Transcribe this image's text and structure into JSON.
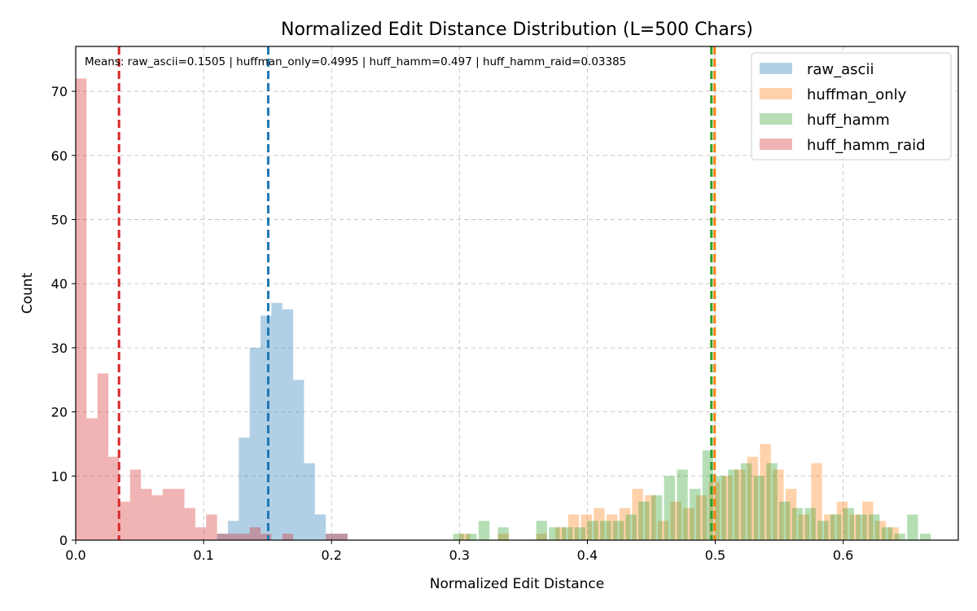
{
  "chart_data": {
    "type": "histogram",
    "title": "Normalized Edit Distance Distribution (L=500 Chars)",
    "xlabel": "Normalized Edit Distance",
    "ylabel": "Count",
    "xlim": [
      0.0,
      0.69
    ],
    "ylim": [
      0,
      77
    ],
    "xticks": [
      0.0,
      0.1,
      0.2,
      0.3,
      0.4,
      0.5,
      0.6
    ],
    "xtick_labels": [
      "0.0",
      "0.1",
      "0.2",
      "0.3",
      "0.4",
      "0.5",
      "0.6"
    ],
    "yticks": [
      0,
      10,
      20,
      30,
      40,
      50,
      60,
      70
    ],
    "ytick_labels": [
      "0",
      "10",
      "20",
      "30",
      "40",
      "50",
      "60",
      "70"
    ],
    "grid": true,
    "legend_position": "top-right",
    "bin_width": 0.0085,
    "means_text": "Means: raw_ascii=0.1505 | huffman_only=0.4995 | huff_hamm=0.497 | huff_hamm_raid=0.03385",
    "series": [
      {
        "name": "raw_ascii",
        "color": "#1f77b4",
        "mean": 0.1505,
        "bins": [
          [
            0.1105,
            1
          ],
          [
            0.119,
            3
          ],
          [
            0.1275,
            16
          ],
          [
            0.136,
            30
          ],
          [
            0.1445,
            35
          ],
          [
            0.153,
            37
          ],
          [
            0.1615,
            36
          ],
          [
            0.17,
            25
          ],
          [
            0.1785,
            12
          ],
          [
            0.187,
            4
          ],
          [
            0.1955,
            1
          ],
          [
            0.204,
            1
          ]
        ]
      },
      {
        "name": "huffman_only",
        "color": "#ff7f0e",
        "mean": 0.4995,
        "bins": [
          [
            0.3,
            1
          ],
          [
            0.33,
            1
          ],
          [
            0.36,
            1
          ],
          [
            0.375,
            2
          ],
          [
            0.385,
            4
          ],
          [
            0.395,
            4
          ],
          [
            0.405,
            5
          ],
          [
            0.415,
            4
          ],
          [
            0.425,
            5
          ],
          [
            0.435,
            8
          ],
          [
            0.445,
            7
          ],
          [
            0.455,
            3
          ],
          [
            0.465,
            6
          ],
          [
            0.475,
            5
          ],
          [
            0.485,
            7
          ],
          [
            0.495,
            9
          ],
          [
            0.505,
            10
          ],
          [
            0.515,
            11
          ],
          [
            0.525,
            13
          ],
          [
            0.535,
            15
          ],
          [
            0.545,
            11
          ],
          [
            0.555,
            8
          ],
          [
            0.565,
            4
          ],
          [
            0.575,
            12
          ],
          [
            0.585,
            4
          ],
          [
            0.595,
            6
          ],
          [
            0.605,
            4
          ],
          [
            0.615,
            6
          ],
          [
            0.625,
            3
          ],
          [
            0.635,
            2
          ]
        ]
      },
      {
        "name": "huff_hamm",
        "color": "#2ca02c",
        "mean": 0.497,
        "bins": [
          [
            0.295,
            1
          ],
          [
            0.305,
            1
          ],
          [
            0.315,
            3
          ],
          [
            0.33,
            2
          ],
          [
            0.36,
            3
          ],
          [
            0.37,
            2
          ],
          [
            0.38,
            2
          ],
          [
            0.39,
            2
          ],
          [
            0.4,
            3
          ],
          [
            0.41,
            3
          ],
          [
            0.42,
            3
          ],
          [
            0.43,
            4
          ],
          [
            0.44,
            6
          ],
          [
            0.45,
            7
          ],
          [
            0.46,
            10
          ],
          [
            0.47,
            11
          ],
          [
            0.48,
            8
          ],
          [
            0.49,
            14
          ],
          [
            0.5,
            10
          ],
          [
            0.51,
            11
          ],
          [
            0.52,
            12
          ],
          [
            0.53,
            10
          ],
          [
            0.54,
            12
          ],
          [
            0.55,
            6
          ],
          [
            0.56,
            5
          ],
          [
            0.57,
            5
          ],
          [
            0.58,
            3
          ],
          [
            0.59,
            4
          ],
          [
            0.6,
            5
          ],
          [
            0.61,
            4
          ],
          [
            0.62,
            4
          ],
          [
            0.63,
            2
          ],
          [
            0.64,
            1
          ],
          [
            0.65,
            4
          ],
          [
            0.66,
            1
          ]
        ]
      },
      {
        "name": "huff_hamm_raid",
        "color": "#d62728",
        "mean": 0.03385,
        "bins": [
          [
            0.0,
            72
          ],
          [
            0.0085,
            19
          ],
          [
            0.017,
            26
          ],
          [
            0.0255,
            13
          ],
          [
            0.034,
            6
          ],
          [
            0.0425,
            11
          ],
          [
            0.051,
            8
          ],
          [
            0.0595,
            7
          ],
          [
            0.068,
            8
          ],
          [
            0.0765,
            8
          ],
          [
            0.085,
            5
          ],
          [
            0.0935,
            2
          ],
          [
            0.102,
            4
          ],
          [
            0.1105,
            1
          ],
          [
            0.119,
            1
          ],
          [
            0.1275,
            1
          ],
          [
            0.136,
            2
          ],
          [
            0.1445,
            1
          ],
          [
            0.1615,
            1
          ],
          [
            0.1955,
            1
          ],
          [
            0.204,
            1
          ]
        ]
      }
    ]
  }
}
